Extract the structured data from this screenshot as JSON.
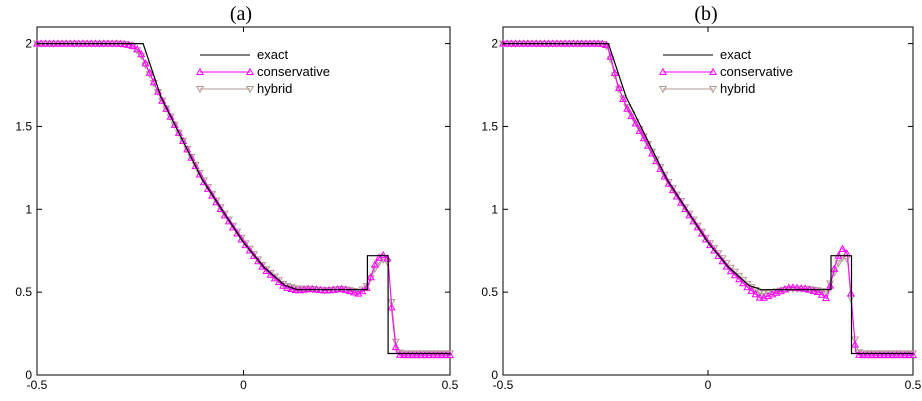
{
  "chart_data": [
    {
      "type": "line",
      "title": "(a)",
      "xlim": [
        -0.5,
        0.5
      ],
      "ylim": [
        0,
        2.1
      ],
      "xticks": [
        "-0.5",
        "0",
        "0.5"
      ],
      "yticks": [
        "0",
        "0.5",
        "1",
        "1.5",
        "2"
      ],
      "xtick_values": [
        -0.5,
        0,
        0.5
      ],
      "ytick_values": [
        0,
        0.5,
        1,
        1.5,
        2
      ],
      "legend_position": "top-right",
      "series": [
        {
          "name": "exact",
          "color": "#000000",
          "marker": "none",
          "x": [
            -0.5,
            -0.243,
            -0.2,
            -0.15,
            -0.1,
            -0.05,
            0.0,
            0.05,
            0.1,
            0.13,
            0.3,
            0.3,
            0.35,
            0.35,
            0.5
          ],
          "y": [
            2.0,
            2.0,
            1.68,
            1.43,
            1.18,
            0.99,
            0.8,
            0.65,
            0.54,
            0.515,
            0.515,
            0.72,
            0.72,
            0.13,
            0.13
          ]
        },
        {
          "name": "conservative",
          "color": "#ff00ff",
          "marker": "triangle-up",
          "x": [
            -0.5,
            -0.3,
            -0.27,
            -0.25,
            -0.23,
            -0.2,
            -0.15,
            -0.1,
            -0.05,
            0.0,
            0.05,
            0.1,
            0.13,
            0.16,
            0.2,
            0.24,
            0.28,
            0.3,
            0.32,
            0.335,
            0.35,
            0.36,
            0.37,
            0.38,
            0.5
          ],
          "y": [
            2.0,
            2.0,
            1.99,
            1.95,
            1.84,
            1.67,
            1.43,
            1.18,
            0.98,
            0.8,
            0.64,
            0.53,
            0.51,
            0.52,
            0.51,
            0.52,
            0.49,
            0.53,
            0.68,
            0.73,
            0.7,
            0.36,
            0.14,
            0.12,
            0.12
          ]
        },
        {
          "name": "hybrid",
          "color": "#b09a90",
          "marker": "triangle-down",
          "x": [
            -0.5,
            -0.3,
            -0.27,
            -0.25,
            -0.23,
            -0.2,
            -0.15,
            -0.1,
            -0.05,
            0.0,
            0.05,
            0.1,
            0.13,
            0.16,
            0.2,
            0.24,
            0.28,
            0.3,
            0.32,
            0.335,
            0.35,
            0.36,
            0.37,
            0.38,
            0.5
          ],
          "y": [
            2.0,
            2.0,
            1.99,
            1.94,
            1.83,
            1.67,
            1.43,
            1.19,
            0.99,
            0.81,
            0.65,
            0.54,
            0.52,
            0.52,
            0.51,
            0.52,
            0.5,
            0.54,
            0.65,
            0.7,
            0.68,
            0.4,
            0.17,
            0.13,
            0.13
          ]
        }
      ]
    },
    {
      "type": "line",
      "title": "(b)",
      "xlim": [
        -0.5,
        0.5
      ],
      "ylim": [
        0,
        2.1
      ],
      "xticks": [
        "-0.5",
        "0",
        "0.5"
      ],
      "yticks": [
        "0",
        "0.5",
        "1",
        "1.5",
        "2"
      ],
      "xtick_values": [
        -0.5,
        0,
        0.5
      ],
      "ytick_values": [
        0,
        0.5,
        1,
        1.5,
        2
      ],
      "legend_position": "top-right",
      "series": [
        {
          "name": "exact",
          "color": "#000000",
          "marker": "none",
          "x": [
            -0.5,
            -0.243,
            -0.2,
            -0.15,
            -0.1,
            -0.05,
            0.0,
            0.05,
            0.1,
            0.13,
            0.3,
            0.3,
            0.35,
            0.35,
            0.5
          ],
          "y": [
            2.0,
            2.0,
            1.68,
            1.43,
            1.18,
            0.99,
            0.8,
            0.65,
            0.54,
            0.515,
            0.515,
            0.72,
            0.72,
            0.13,
            0.13
          ]
        },
        {
          "name": "conservative",
          "color": "#ff00ff",
          "marker": "triangle-up",
          "x": [
            -0.5,
            -0.26,
            -0.245,
            -0.235,
            -0.22,
            -0.2,
            -0.15,
            -0.1,
            -0.05,
            0.0,
            0.05,
            0.1,
            0.13,
            0.16,
            0.2,
            0.24,
            0.27,
            0.29,
            0.31,
            0.325,
            0.34,
            0.35,
            0.36,
            0.37,
            0.5
          ],
          "y": [
            2.0,
            2.0,
            1.99,
            1.9,
            1.75,
            1.62,
            1.4,
            1.17,
            0.98,
            0.8,
            0.64,
            0.52,
            0.46,
            0.49,
            0.53,
            0.52,
            0.5,
            0.46,
            0.66,
            0.77,
            0.73,
            0.45,
            0.14,
            0.12,
            0.12
          ]
        },
        {
          "name": "hybrid",
          "color": "#b09a90",
          "marker": "triangle-down",
          "x": [
            -0.5,
            -0.26,
            -0.245,
            -0.235,
            -0.22,
            -0.2,
            -0.15,
            -0.1,
            -0.05,
            0.0,
            0.05,
            0.1,
            0.13,
            0.16,
            0.2,
            0.24,
            0.27,
            0.29,
            0.31,
            0.325,
            0.34,
            0.35,
            0.36,
            0.37,
            0.5
          ],
          "y": [
            2.0,
            2.0,
            1.98,
            1.88,
            1.74,
            1.63,
            1.41,
            1.18,
            0.99,
            0.81,
            0.66,
            0.54,
            0.49,
            0.5,
            0.52,
            0.52,
            0.51,
            0.5,
            0.63,
            0.71,
            0.7,
            0.42,
            0.18,
            0.13,
            0.13
          ]
        }
      ]
    }
  ]
}
